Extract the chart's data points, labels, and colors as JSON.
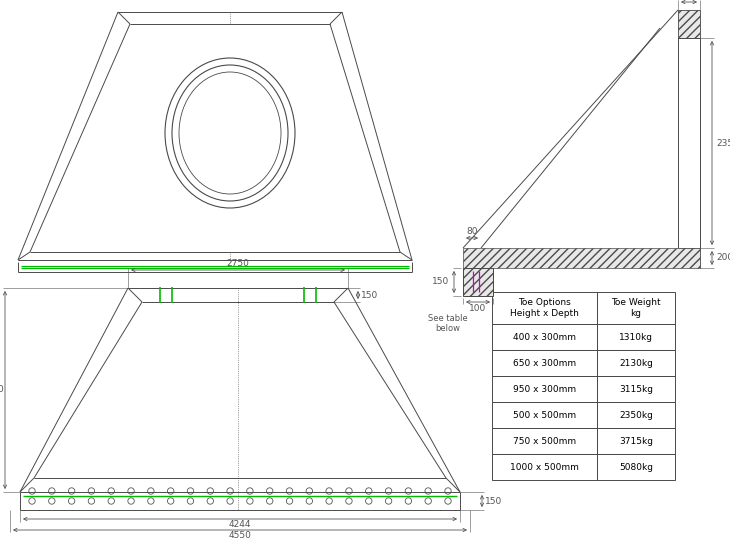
{
  "bg_color": "#ffffff",
  "line_color": "#4a4a4a",
  "green_color": "#00bb00",
  "magenta_color": "#cc00cc",
  "dim_color": "#555555",
  "table_header": [
    "Toe Options\nHeight x Depth",
    "Toe Weight\nkg"
  ],
  "table_rows": [
    [
      "400 x 300mm",
      "1310kg"
    ],
    [
      "650 x 300mm",
      "2130kg"
    ],
    [
      "950 x 300mm",
      "3115kg"
    ],
    [
      "500 x 500mm",
      "2350kg"
    ],
    [
      "750 x 500mm",
      "3715kg"
    ],
    [
      "1000 x 500mm",
      "5080kg"
    ]
  ],
  "font_size": 7,
  "dim_font_size": 6.5
}
